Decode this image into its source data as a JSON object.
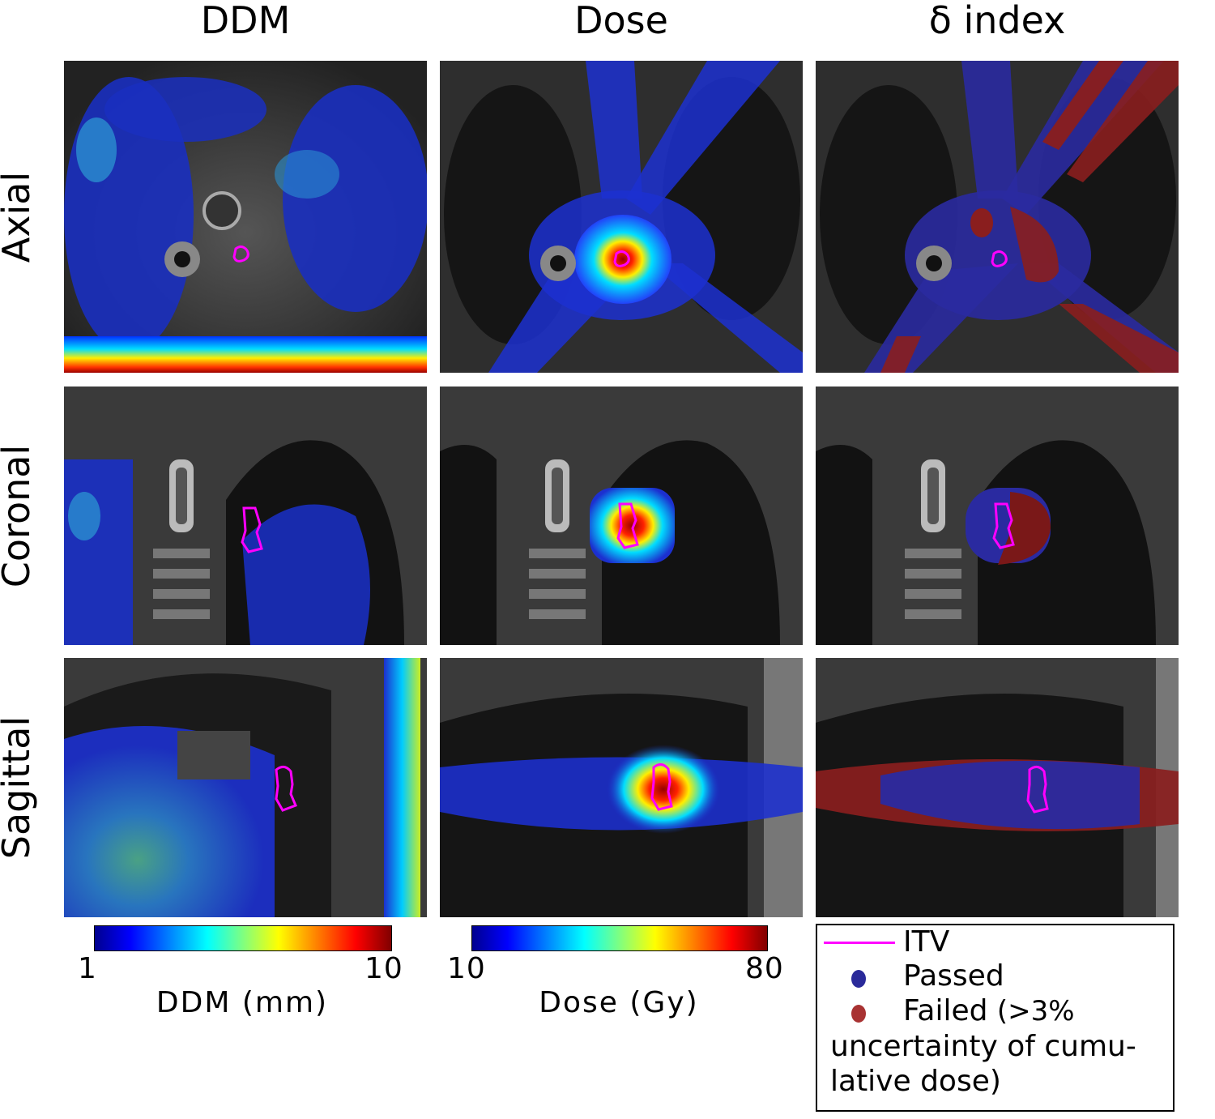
{
  "columns": [
    "DDM",
    "Dose",
    "δ index"
  ],
  "rows": [
    "Axial",
    "Coronal",
    "Sagittal"
  ],
  "colorbars": {
    "ddm": {
      "min": "1",
      "max": "10",
      "label": "DDM (mm)"
    },
    "dose": {
      "min": "10",
      "max": "80",
      "label": "Dose (Gy)"
    }
  },
  "legend": {
    "itv": "ITV",
    "passed": "Passed",
    "failed": "Failed",
    "failed_detail_1": "(>3%",
    "failed_detail_2": "uncertainty of cumu-",
    "failed_detail_3": "lative dose)"
  },
  "colors": {
    "itv": "#ff00ff",
    "passed": "#2a2a9a",
    "failed": "#a83232",
    "jet": [
      "#00008f",
      "#0000ff",
      "#00ffff",
      "#ffff00",
      "#ff0000",
      "#800000"
    ]
  }
}
